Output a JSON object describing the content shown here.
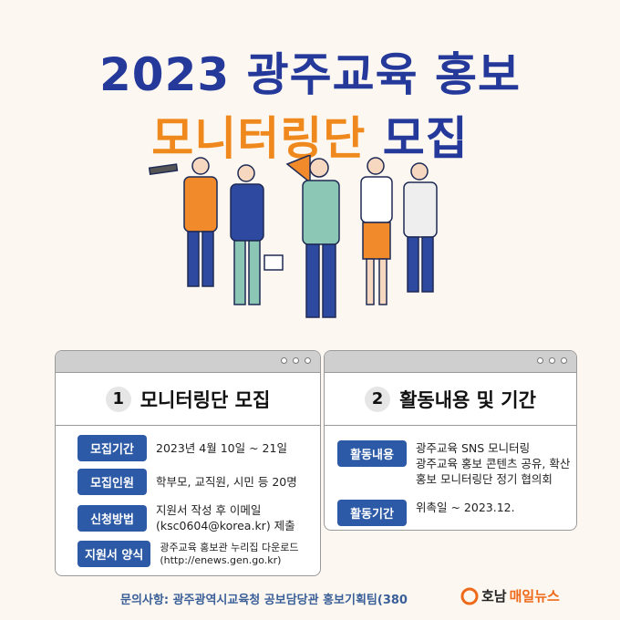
{
  "title": {
    "line1": "2023 광주교육 홍보",
    "line2_orange": "모니터링단",
    "line2_blue": "모집"
  },
  "card1": {
    "number": "1",
    "title": "모니터링단 모집",
    "rows": [
      {
        "label": "모집기간",
        "value": [
          "2023년 4월 10일 ~ 21일"
        ]
      },
      {
        "label": "모집인원",
        "value": [
          "학부모, 교직원, 시민 등 20명"
        ]
      },
      {
        "label": "신청방법",
        "value": [
          "지원서 작성 후 이메일",
          "(ksc0604@korea.kr) 제출"
        ]
      },
      {
        "label": "지원서 양식",
        "value": [
          "광주교육 홍보관 누리집 다운로드",
          "(http://enews.gen.go.kr)"
        ]
      }
    ]
  },
  "card2": {
    "number": "2",
    "title": "활동내용 및 기간",
    "rows": [
      {
        "label": "활동내용",
        "value": [
          "광주교육 SNS 모니터링",
          "광주교육 홍보 콘텐츠 공유, 확산",
          "홍보 모니터링단 정기 협의회"
        ]
      },
      {
        "label": "활동기간",
        "value": [
          "위촉일 ~ 2023.12."
        ]
      }
    ]
  },
  "footer": {
    "contact": "문의사항: 광주광역시교육청 공보담당관 홍보기획팀(380"
  },
  "watermark": {
    "part1": "호남",
    "part2": "매일뉴스"
  },
  "colors": {
    "blue": "#25399a",
    "orange": "#f0891d",
    "pill": "#2c5aa6"
  }
}
